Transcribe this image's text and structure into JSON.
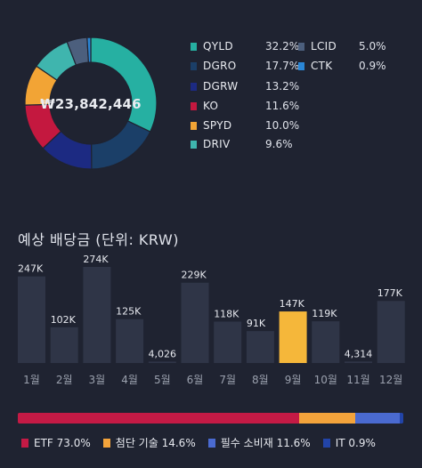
{
  "portfolio": {
    "total": "₩23,842,446",
    "holdings": [
      {
        "ticker": "QYLD",
        "percent": "32.2%",
        "value": 32.2,
        "color": "#26b0a2"
      },
      {
        "ticker": "DGRO",
        "percent": "17.7%",
        "value": 17.7,
        "color": "#1b3f68"
      },
      {
        "ticker": "DGRW",
        "percent": "13.2%",
        "value": 13.2,
        "color": "#1c2a82"
      },
      {
        "ticker": "KO",
        "percent": "11.6%",
        "value": 11.6,
        "color": "#c4183f"
      },
      {
        "ticker": "SPYD",
        "percent": "10.0%",
        "value": 10.0,
        "color": "#f2a435"
      },
      {
        "ticker": "DRIV",
        "percent": "9.6%",
        "value": 9.6,
        "color": "#3fb5ae"
      },
      {
        "ticker": "LCID",
        "percent": "5.0%",
        "value": 5.0,
        "color": "#4c5f7d"
      },
      {
        "ticker": "CTK",
        "percent": "0.9%",
        "value": 0.9,
        "color": "#2a86d6"
      }
    ]
  },
  "dividends": {
    "title": "예상 배당금 (단위: KRW)",
    "highlight_color": "#f5b73a",
    "bar_color": "#2f3547"
  },
  "chart_data": {
    "type": "bar",
    "title": "예상 배당금 (단위: KRW)",
    "categories": [
      "1월",
      "2월",
      "3월",
      "4월",
      "5월",
      "6월",
      "7월",
      "8월",
      "9월",
      "10월",
      "11월",
      "12월"
    ],
    "values": [
      247000,
      102000,
      274000,
      125000,
      4026,
      229000,
      118000,
      91000,
      147000,
      119000,
      4314,
      177000
    ],
    "labels": [
      "247K",
      "102K",
      "274K",
      "125K",
      "4,026",
      "229K",
      "118K",
      "91K",
      "147K",
      "119K",
      "4,314",
      "177K"
    ],
    "highlight_index": 8,
    "ylim": [
      0,
      274000
    ]
  },
  "categories_split": [
    {
      "name": "ETF",
      "percent": "73.0%",
      "value": 73.0,
      "color": "#c41a45"
    },
    {
      "name": "첨단 기술",
      "percent": "14.6%",
      "value": 14.6,
      "color": "#f3a33b"
    },
    {
      "name": "필수 소비재",
      "percent": "11.6%",
      "value": 11.6,
      "color": "#4a6ad0"
    },
    {
      "name": "IT",
      "percent": "0.9%",
      "value": 0.9,
      "color": "#2244a8"
    }
  ]
}
